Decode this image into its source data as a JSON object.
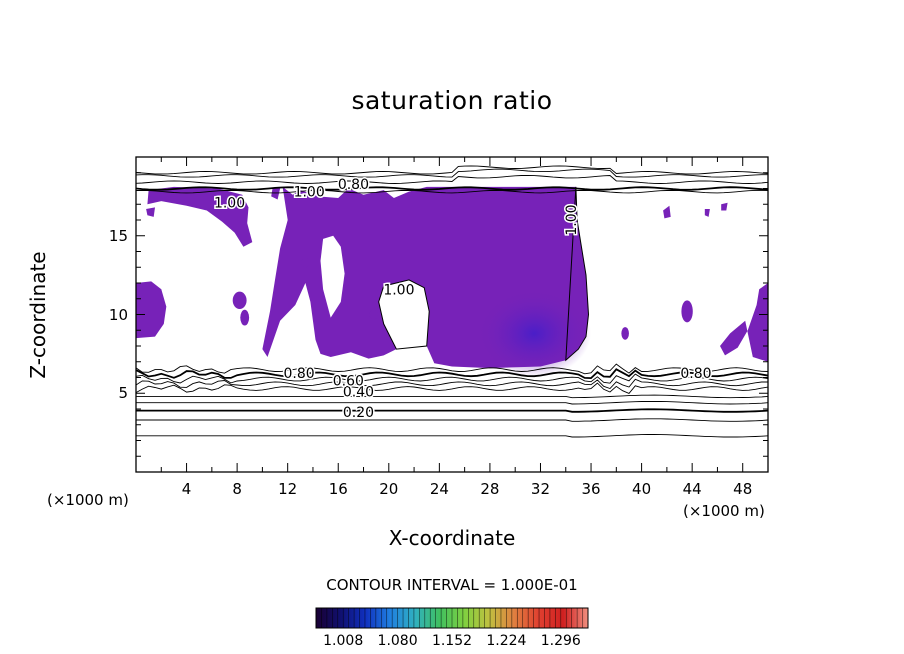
{
  "chart_data": {
    "type": "contour",
    "title": "saturation ratio",
    "xlabel": "X-coordinate",
    "ylabel": "Z-coordinate",
    "x_unit_label": "(×1000 m)",
    "xlim": [
      0,
      50
    ],
    "ylim": [
      0,
      20
    ],
    "x_ticks": [
      "4",
      "8",
      "12",
      "16",
      "20",
      "24",
      "28",
      "32",
      "36",
      "40",
      "44",
      "48"
    ],
    "y_ticks": [
      "5",
      "10",
      "15"
    ],
    "contour_interval_text": "CONTOUR INTERVAL = 1.000E-01",
    "contour_labels": [
      {
        "text": "0.20",
        "x": 17.6,
        "z": 3.8
      },
      {
        "text": "0.40",
        "x": 17.6,
        "z": 5.1
      },
      {
        "text": "0.60",
        "x": 16.8,
        "z": 5.8
      },
      {
        "text": "0.80",
        "x": 12.9,
        "z": 6.3
      },
      {
        "text": "0.80",
        "x": 44.3,
        "z": 6.3
      },
      {
        "text": "1.00",
        "x": 13.7,
        "z": 17.8
      },
      {
        "text": "1.00",
        "x": 7.4,
        "z": 17.1
      },
      {
        "text": "1.00",
        "x": 20.8,
        "z": 11.6
      },
      {
        "text": "1.00",
        "x": 34.4,
        "z": 16.0
      },
      {
        "text": "0.80",
        "x": 17.2,
        "z": 18.3
      }
    ],
    "horizontal_contours_z": [
      2.3,
      3.3,
      3.9,
      4.4,
      4.8,
      5.3,
      5.6,
      5.9,
      6.2,
      6.5,
      17.8,
      18.0,
      18.4,
      18.8,
      19.0
    ],
    "supersaturated_fill_color": "#7722b8",
    "supersaturated_core_color": "#4a1ec8",
    "colorbar": {
      "tick_labels": [
        "1.008",
        "1.080",
        "1.152",
        "1.224",
        "1.296"
      ],
      "tick_values": [
        1.008,
        1.08,
        1.152,
        1.224,
        1.296
      ],
      "range": [
        0.972,
        1.332
      ],
      "colors": [
        "#1a0033",
        "#101070",
        "#1030c0",
        "#2080e0",
        "#30b0c0",
        "#40c060",
        "#80d040",
        "#c0c040",
        "#e08040",
        "#e04030",
        "#d02020",
        "#f09080"
      ]
    }
  }
}
